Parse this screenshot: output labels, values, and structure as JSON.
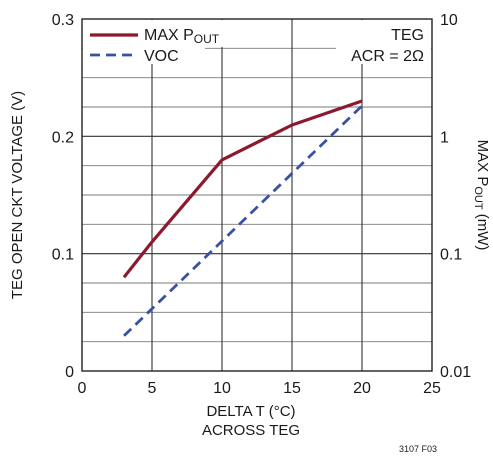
{
  "chart_data": {
    "type": "line",
    "x": {
      "label_lines": [
        "DELTA T (°C)",
        "ACROSS TEG"
      ],
      "range": [
        0,
        25
      ],
      "ticks": [
        0,
        5,
        10,
        15,
        20,
        25
      ]
    },
    "y_left": {
      "label": "TEG OPEN CKT VOLTAGE (V)",
      "range": [
        0,
        0.3
      ],
      "ticks": [
        0,
        0.1,
        0.2,
        0.3
      ],
      "tick_labels": [
        "0",
        "0.1",
        "0.2",
        "0.3"
      ],
      "minor_step": 0.025
    },
    "y_right": {
      "label_main": "MAX P",
      "label_sub": "OUT",
      "label_unit": " (mW)",
      "scale": "log",
      "range": [
        0.01,
        10
      ],
      "ticks": [
        0.01,
        0.1,
        1,
        10
      ],
      "tick_labels": [
        "0.01",
        "0.1",
        "1",
        "10"
      ]
    },
    "grid": true,
    "series": [
      {
        "name_main": "MAX P",
        "name_sub": "OUT",
        "axis": "right",
        "style": "solid",
        "color": "#8b1a2e",
        "points": [
          [
            3,
            0.063
          ],
          [
            5,
            0.126
          ],
          [
            10,
            0.63
          ],
          [
            15,
            1.25
          ],
          [
            20,
            2.0
          ]
        ]
      },
      {
        "name_main": "VOC",
        "name_sub": "",
        "axis": "left",
        "style": "dashed",
        "color": "#3a51a3",
        "points": [
          [
            3,
            0.03
          ],
          [
            20,
            0.226
          ]
        ]
      }
    ],
    "annotation": [
      "TEG",
      "ACR = 2Ω"
    ],
    "legend_position": "top-left",
    "figure_id": "3107 F03"
  }
}
